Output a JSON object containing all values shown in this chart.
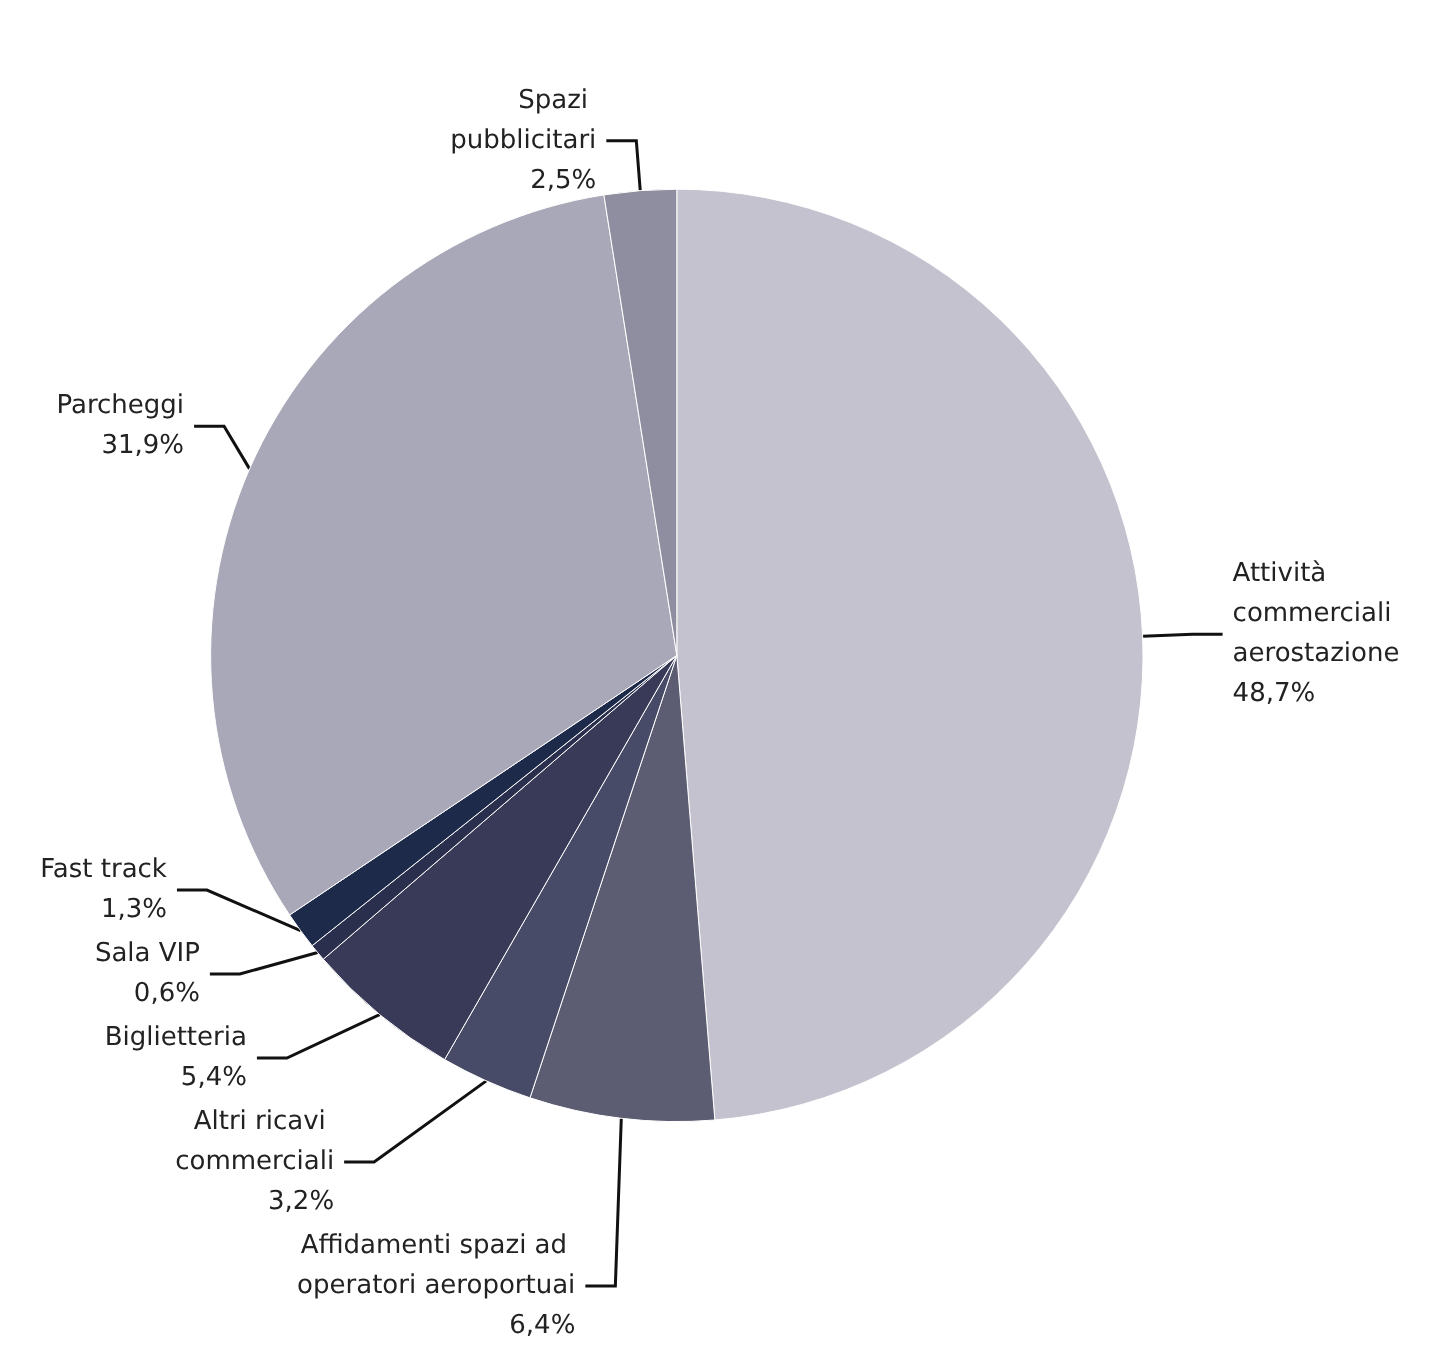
{
  "chart_data": {
    "type": "pie",
    "categories": [
      "Attività commerciali aerostazione",
      "Affidamenti spazi ad operatori aeroportuai",
      "Altri ricavi commerciali",
      "Biglietteria",
      "Sala VIP",
      "Fast track",
      "Parcheggi",
      "Spazi pubblicitari"
    ],
    "values": [
      48.7,
      6.4,
      3.2,
      5.4,
      0.6,
      1.3,
      31.9,
      2.5
    ],
    "value_labels": [
      "48,7%",
      "6,4%",
      "3,2%",
      "5,4%",
      "0,6%",
      "1,3%",
      "31,9%",
      "2,5%"
    ],
    "colors": [
      "#c3c2ce",
      "#5c5c72",
      "#484b68",
      "#383a57",
      "#2a2f4e",
      "#1d2a4a",
      "#a9a8b8",
      "#8f8ea0"
    ],
    "legend": false
  }
}
